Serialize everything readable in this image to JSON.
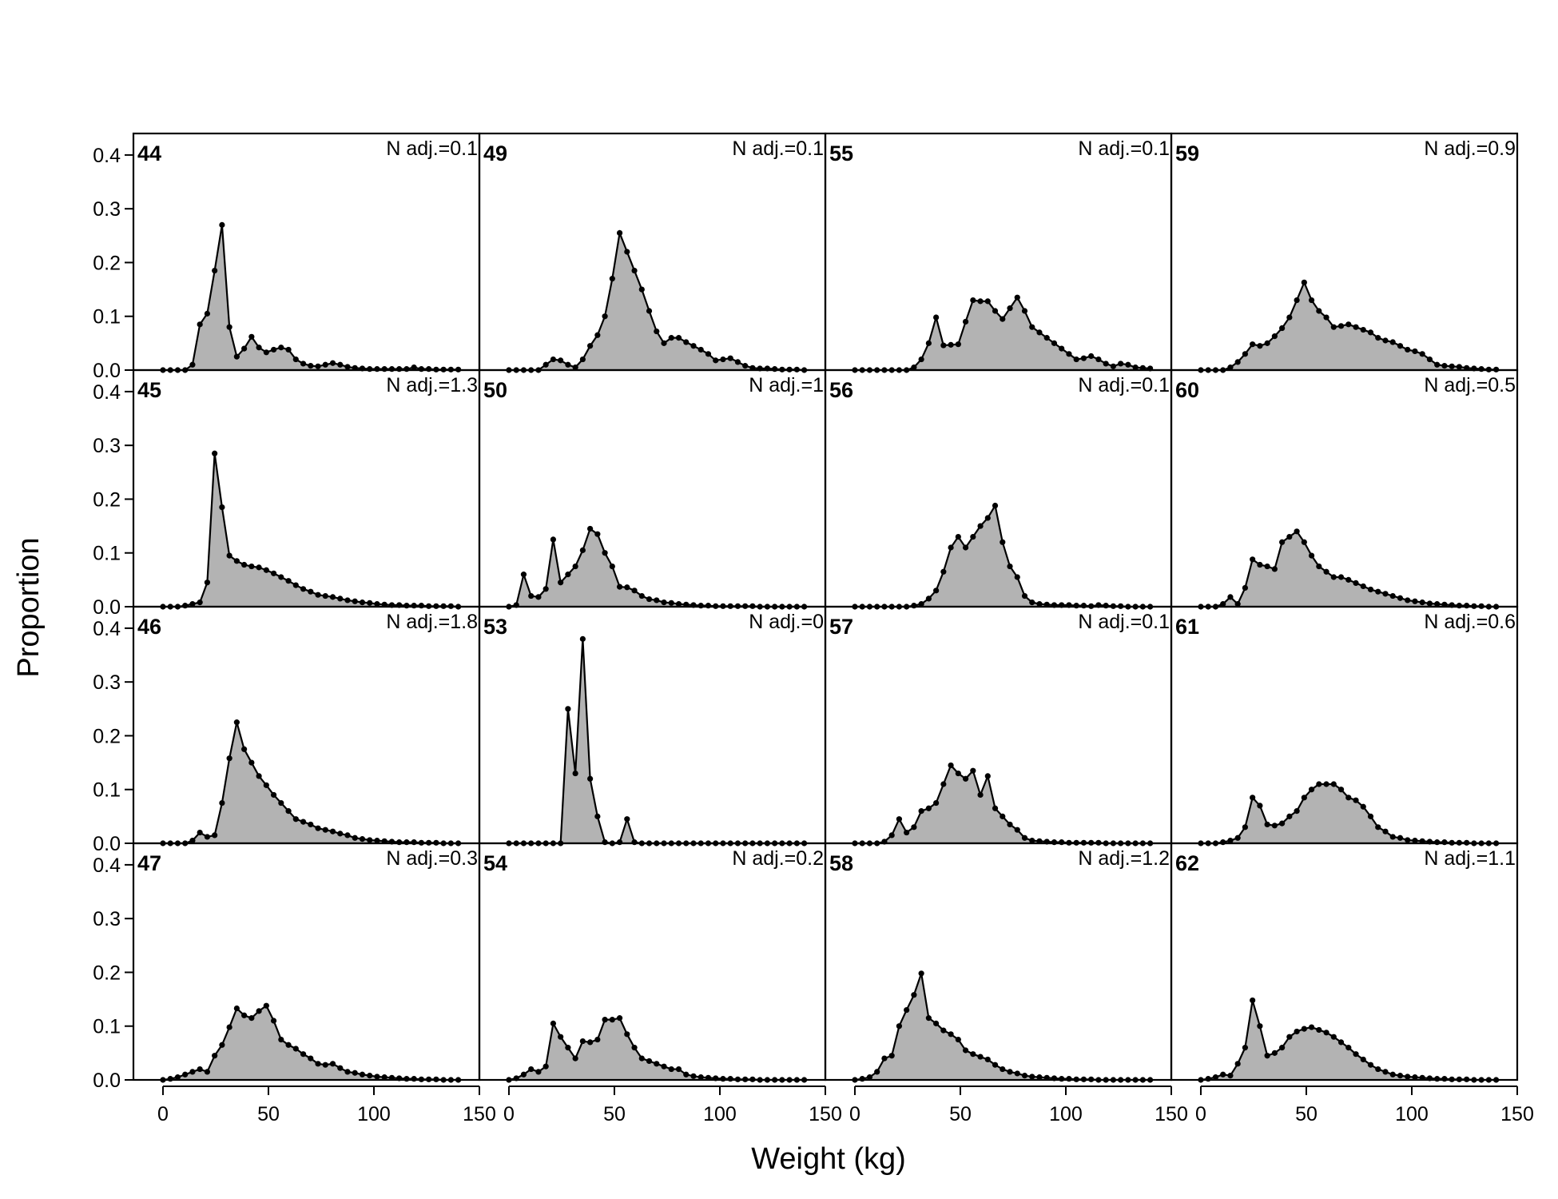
{
  "figure": {
    "ylabel": "Proportion",
    "xlabel": "Weight (kg)"
  },
  "chart_data": {
    "type": "area",
    "layout": "4x4 panel grid",
    "xlabel": "Weight (kg)",
    "ylabel": "Proportion",
    "xlim": [
      -14,
      150
    ],
    "ylim": [
      0,
      0.44
    ],
    "xticks": [
      0,
      50,
      100,
      150
    ],
    "yticks": [
      0.0,
      0.1,
      0.2,
      0.3,
      0.4
    ],
    "x": [
      0,
      3.5,
      7,
      10.5,
      14,
      17.5,
      21,
      24.5,
      28,
      31.5,
      35,
      38.5,
      42,
      45.5,
      49,
      52.5,
      56,
      59.5,
      63,
      66.5,
      70,
      73.5,
      77,
      80.5,
      84,
      87.5,
      91,
      94.5,
      98,
      101.5,
      105,
      108.5,
      112,
      115.5,
      119,
      122.5,
      126,
      129.5,
      133,
      136.5,
      140
    ],
    "fill_color": "#b3b3b3",
    "line_color": "#000000",
    "panels": [
      {
        "label": "44",
        "note": "N adj.=0.1",
        "values": [
          0,
          0,
          0,
          0,
          0.01,
          0.085,
          0.105,
          0.185,
          0.27,
          0.08,
          0.025,
          0.04,
          0.062,
          0.042,
          0.033,
          0.038,
          0.042,
          0.038,
          0.02,
          0.012,
          0.008,
          0.007,
          0.01,
          0.013,
          0.01,
          0.006,
          0.004,
          0.003,
          0.002,
          0.002,
          0.002,
          0.002,
          0.002,
          0.002,
          0.005,
          0.002,
          0.002,
          0.001,
          0.001,
          0.001,
          0.001
        ]
      },
      {
        "label": "49",
        "note": "N adj.=0.1",
        "values": [
          0,
          0,
          0,
          0,
          0,
          0.01,
          0.02,
          0.018,
          0.01,
          0.005,
          0.02,
          0.045,
          0.065,
          0.1,
          0.17,
          0.255,
          0.22,
          0.185,
          0.15,
          0.11,
          0.072,
          0.05,
          0.06,
          0.06,
          0.052,
          0.045,
          0.038,
          0.03,
          0.018,
          0.02,
          0.022,
          0.015,
          0.008,
          0.004,
          0.003,
          0.003,
          0.002,
          0.001,
          0.001,
          0.001,
          0
        ]
      },
      {
        "label": "55",
        "note": "N adj.=0.1",
        "values": [
          0,
          0,
          0,
          0,
          0,
          0,
          0,
          0,
          0.005,
          0.02,
          0.05,
          0.098,
          0.046,
          0.047,
          0.048,
          0.09,
          0.13,
          0.128,
          0.128,
          0.11,
          0.095,
          0.115,
          0.135,
          0.11,
          0.08,
          0.07,
          0.06,
          0.05,
          0.04,
          0.03,
          0.02,
          0.022,
          0.026,
          0.02,
          0.012,
          0.007,
          0.012,
          0.01,
          0.005,
          0.004,
          0.003
        ]
      },
      {
        "label": "59",
        "note": "N adj.=0.9",
        "values": [
          0,
          0,
          0,
          0,
          0.005,
          0.015,
          0.03,
          0.048,
          0.045,
          0.05,
          0.063,
          0.078,
          0.098,
          0.13,
          0.163,
          0.13,
          0.11,
          0.098,
          0.08,
          0.082,
          0.085,
          0.08,
          0.075,
          0.07,
          0.06,
          0.055,
          0.052,
          0.045,
          0.038,
          0.035,
          0.03,
          0.02,
          0.01,
          0.008,
          0.007,
          0.006,
          0.004,
          0.003,
          0.002,
          0.001,
          0.001
        ]
      },
      {
        "label": "45",
        "note": "N adj.=1.3",
        "values": [
          0,
          0,
          0,
          0.002,
          0.005,
          0.008,
          0.045,
          0.285,
          0.185,
          0.095,
          0.085,
          0.078,
          0.075,
          0.073,
          0.068,
          0.062,
          0.055,
          0.048,
          0.04,
          0.033,
          0.028,
          0.022,
          0.02,
          0.018,
          0.015,
          0.012,
          0.01,
          0.008,
          0.007,
          0.005,
          0.004,
          0.003,
          0.003,
          0.002,
          0.002,
          0.002,
          0.001,
          0.001,
          0.001,
          0.001,
          0
        ]
      },
      {
        "label": "50",
        "note": "N adj.=1",
        "values": [
          0,
          0.003,
          0.06,
          0.02,
          0.018,
          0.033,
          0.125,
          0.045,
          0.06,
          0.075,
          0.105,
          0.145,
          0.135,
          0.1,
          0.075,
          0.037,
          0.036,
          0.03,
          0.02,
          0.014,
          0.012,
          0.008,
          0.007,
          0.005,
          0.004,
          0.003,
          0.002,
          0.002,
          0.001,
          0.001,
          0.001,
          0.001,
          0.001,
          0.001,
          0,
          0,
          0,
          0,
          0,
          0,
          0
        ]
      },
      {
        "label": "56",
        "note": "N adj.=0.1",
        "values": [
          0,
          0,
          0,
          0,
          0,
          0,
          0,
          0,
          0.002,
          0.005,
          0.015,
          0.03,
          0.065,
          0.11,
          0.13,
          0.11,
          0.13,
          0.15,
          0.165,
          0.188,
          0.12,
          0.075,
          0.055,
          0.02,
          0.008,
          0.005,
          0.004,
          0.003,
          0.003,
          0.003,
          0.002,
          0.002,
          0.001,
          0.003,
          0.002,
          0.001,
          0.001,
          0,
          0,
          0,
          0
        ]
      },
      {
        "label": "60",
        "note": "N adj.=0.5",
        "values": [
          0,
          0,
          0,
          0.005,
          0.018,
          0.005,
          0.035,
          0.088,
          0.078,
          0.075,
          0.07,
          0.12,
          0.13,
          0.14,
          0.12,
          0.095,
          0.075,
          0.065,
          0.055,
          0.055,
          0.05,
          0.044,
          0.038,
          0.032,
          0.028,
          0.024,
          0.02,
          0.016,
          0.012,
          0.01,
          0.008,
          0.006,
          0.005,
          0.004,
          0.003,
          0.002,
          0.002,
          0.001,
          0.001,
          0,
          0
        ]
      },
      {
        "label": "46",
        "note": "N adj.=1.8",
        "values": [
          0,
          0,
          0,
          0,
          0.005,
          0.02,
          0.012,
          0.015,
          0.075,
          0.158,
          0.225,
          0.175,
          0.15,
          0.125,
          0.108,
          0.09,
          0.075,
          0.06,
          0.045,
          0.04,
          0.035,
          0.028,
          0.025,
          0.022,
          0.018,
          0.015,
          0.01,
          0.008,
          0.006,
          0.005,
          0.004,
          0.003,
          0.002,
          0.002,
          0.002,
          0.001,
          0.001,
          0.001,
          0,
          0,
          0
        ]
      },
      {
        "label": "53",
        "note": "N adj.=0",
        "values": [
          0,
          0,
          0,
          0,
          0,
          0,
          0,
          0,
          0.25,
          0.13,
          0.38,
          0.12,
          0.05,
          0.002,
          0,
          0.002,
          0.045,
          0.002,
          0,
          0,
          0,
          0,
          0,
          0,
          0,
          0,
          0,
          0,
          0,
          0,
          0,
          0,
          0,
          0,
          0,
          0,
          0,
          0,
          0,
          0,
          0
        ]
      },
      {
        "label": "57",
        "note": "N adj.=0.1",
        "values": [
          0,
          0,
          0,
          0,
          0.003,
          0.015,
          0.045,
          0.02,
          0.03,
          0.06,
          0.065,
          0.075,
          0.11,
          0.145,
          0.13,
          0.12,
          0.135,
          0.09,
          0.125,
          0.065,
          0.05,
          0.035,
          0.025,
          0.01,
          0.005,
          0.004,
          0.003,
          0.002,
          0.002,
          0.001,
          0.001,
          0.001,
          0.001,
          0.001,
          0,
          0,
          0,
          0,
          0,
          0,
          0
        ]
      },
      {
        "label": "61",
        "note": "N adj.=0.6",
        "values": [
          0,
          0,
          0,
          0.002,
          0.005,
          0.01,
          0.03,
          0.085,
          0.07,
          0.035,
          0.033,
          0.037,
          0.05,
          0.06,
          0.085,
          0.1,
          0.11,
          0.11,
          0.11,
          0.1,
          0.085,
          0.08,
          0.068,
          0.05,
          0.03,
          0.022,
          0.012,
          0.01,
          0.006,
          0.005,
          0.004,
          0.003,
          0.002,
          0.002,
          0.001,
          0.001,
          0.001,
          0,
          0,
          0,
          0
        ]
      },
      {
        "label": "47",
        "note": "N adj.=0.3",
        "values": [
          0,
          0.002,
          0.005,
          0.01,
          0.015,
          0.02,
          0.015,
          0.045,
          0.065,
          0.098,
          0.133,
          0.12,
          0.115,
          0.128,
          0.138,
          0.11,
          0.075,
          0.065,
          0.058,
          0.048,
          0.04,
          0.03,
          0.028,
          0.03,
          0.022,
          0.015,
          0.013,
          0.01,
          0.008,
          0.006,
          0.005,
          0.004,
          0.003,
          0.002,
          0.002,
          0.001,
          0.001,
          0.001,
          0,
          0,
          0
        ]
      },
      {
        "label": "54",
        "note": "N adj.=0.2",
        "values": [
          0,
          0.003,
          0.01,
          0.02,
          0.015,
          0.025,
          0.105,
          0.08,
          0.06,
          0.04,
          0.072,
          0.07,
          0.075,
          0.112,
          0.112,
          0.115,
          0.085,
          0.06,
          0.04,
          0.035,
          0.03,
          0.025,
          0.02,
          0.02,
          0.01,
          0.007,
          0.005,
          0.004,
          0.003,
          0.002,
          0.002,
          0.001,
          0.001,
          0.001,
          0,
          0,
          0,
          0,
          0,
          0,
          0
        ]
      },
      {
        "label": "58",
        "note": "N adj.=1.2",
        "values": [
          0,
          0.002,
          0.005,
          0.015,
          0.04,
          0.045,
          0.1,
          0.13,
          0.158,
          0.198,
          0.115,
          0.105,
          0.092,
          0.085,
          0.075,
          0.055,
          0.048,
          0.043,
          0.038,
          0.028,
          0.02,
          0.015,
          0.012,
          0.008,
          0.006,
          0.005,
          0.004,
          0.003,
          0.002,
          0.002,
          0.001,
          0.001,
          0.001,
          0,
          0,
          0,
          0,
          0,
          0,
          0,
          0
        ]
      },
      {
        "label": "62",
        "note": "N adj.=1.1",
        "values": [
          0,
          0.002,
          0.005,
          0.01,
          0.008,
          0.03,
          0.06,
          0.148,
          0.1,
          0.045,
          0.05,
          0.06,
          0.08,
          0.09,
          0.095,
          0.098,
          0.093,
          0.088,
          0.08,
          0.07,
          0.06,
          0.048,
          0.038,
          0.028,
          0.02,
          0.015,
          0.01,
          0.008,
          0.006,
          0.005,
          0.004,
          0.003,
          0.002,
          0.002,
          0.001,
          0.001,
          0.001,
          0,
          0,
          0,
          0
        ]
      }
    ]
  }
}
